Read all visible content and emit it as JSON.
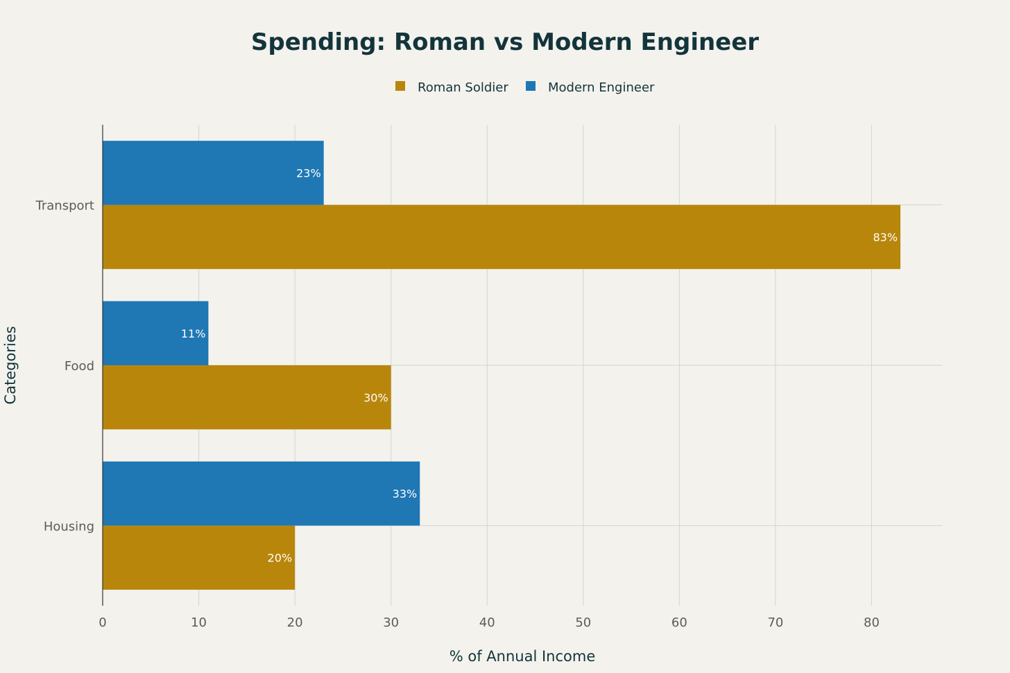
{
  "chart_data": {
    "type": "bar",
    "orientation": "horizontal",
    "title": "Spending: Roman vs Modern Engineer",
    "xlabel": "% of Annual Income",
    "ylabel": "Categories",
    "categories": [
      "Transport",
      "Food",
      "Housing"
    ],
    "series": [
      {
        "name": "Roman Soldier",
        "color": "#b8860b",
        "values": [
          83,
          30,
          20
        ],
        "labels": [
          "83%",
          "30%",
          "20%"
        ]
      },
      {
        "name": "Modern Engineer",
        "color": "#1f77b4",
        "values": [
          23,
          11,
          33
        ],
        "labels": [
          "23%",
          "11%",
          "33%"
        ]
      }
    ],
    "xlim": [
      0,
      87.4
    ],
    "xticks": [
      0,
      10,
      20,
      30,
      40,
      50,
      60,
      70,
      80
    ],
    "grid": true,
    "legend_position": "top-center"
  },
  "colors": {
    "background": "#f3f2ed",
    "title": "#13343b",
    "axis_text": "#5b5b5b",
    "grid": "#d6d5cf",
    "axis_line": "#333333",
    "bar_label": "#ffffff"
  }
}
